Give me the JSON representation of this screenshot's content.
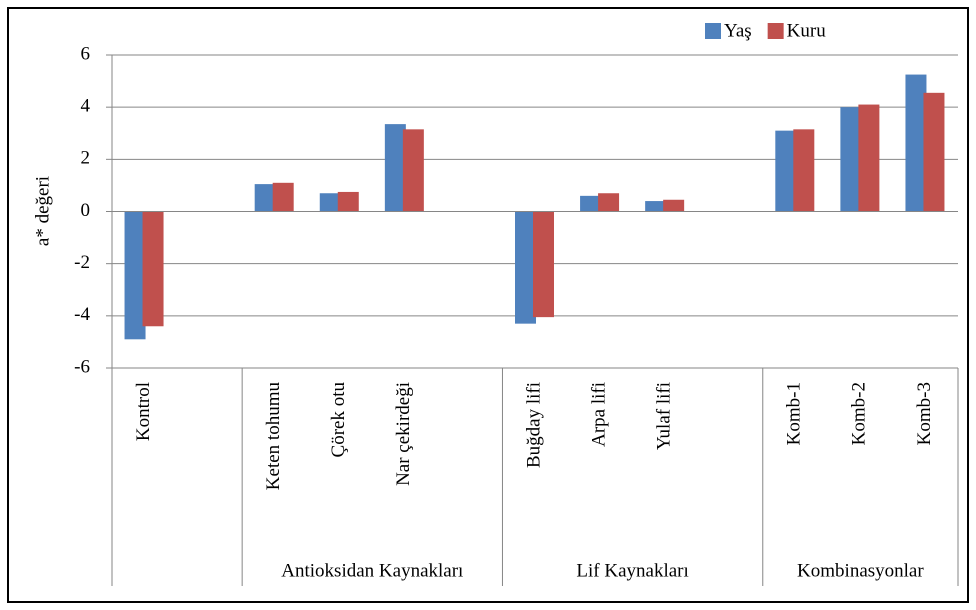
{
  "chart_data": {
    "type": "bar",
    "y_label": "a* değeri",
    "categories": [
      "Kontrol",
      null,
      "Keten tohumu",
      "Çörek otu",
      "Nar çekirdeği",
      null,
      "Buğday lifi",
      "Arpa lifi",
      "Yulaf lifi",
      null,
      "Komb-1",
      "Komb-2",
      "Komb-3"
    ],
    "group_labels": [
      null,
      "Antioksidan Kaynakları",
      "Lif Kaynakları",
      "Kombinasyonlar"
    ],
    "series": [
      {
        "name": "Yaş",
        "color": "#4f81bd",
        "values": [
          -4.9,
          null,
          1.05,
          0.7,
          3.35,
          null,
          -4.3,
          0.6,
          0.4,
          null,
          3.1,
          4.0,
          5.25
        ]
      },
      {
        "name": "Kuru",
        "color": "#c0504d",
        "values": [
          -4.4,
          null,
          1.1,
          0.75,
          3.15,
          null,
          -4.05,
          0.7,
          0.45,
          null,
          3.15,
          4.1,
          4.55
        ]
      }
    ],
    "ylim": [
      -6,
      6
    ],
    "yticks": [
      -6,
      -4,
      -2,
      0,
      2,
      4,
      6
    ],
    "grid": true,
    "legend": "top-right"
  }
}
